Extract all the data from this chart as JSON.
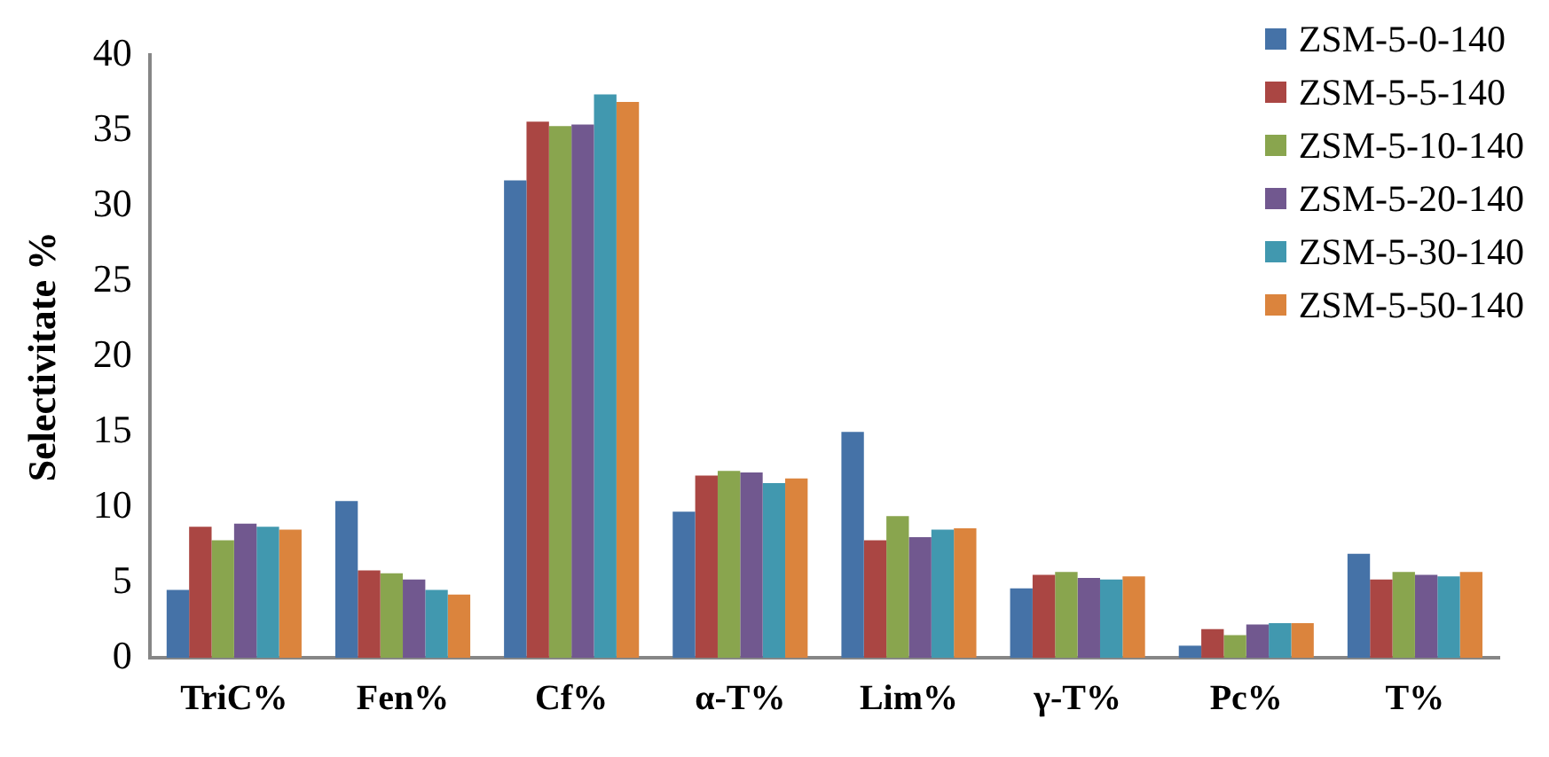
{
  "chart_data": {
    "type": "bar",
    "ylabel": "Selectivitate %",
    "categories": [
      "TriC%",
      "Fen%",
      "Cf%",
      "α-T%",
      "Lim%",
      "γ-T%",
      "Pc%",
      "T%"
    ],
    "series": [
      {
        "name": "ZSM-5-0-140",
        "color": "#4572a7",
        "values": [
          4.5,
          10.4,
          31.7,
          9.7,
          15.0,
          4.6,
          0.8,
          6.9
        ]
      },
      {
        "name": "ZSM-5-5-140",
        "color": "#aa4643",
        "values": [
          8.7,
          5.8,
          35.6,
          12.1,
          7.8,
          5.5,
          1.9,
          5.2
        ]
      },
      {
        "name": "ZSM-5-10-140",
        "color": "#89a54e",
        "values": [
          7.8,
          5.6,
          35.3,
          12.4,
          9.4,
          5.7,
          1.5,
          5.7
        ]
      },
      {
        "name": "ZSM-5-20-140",
        "color": "#71588f",
        "values": [
          8.9,
          5.2,
          35.4,
          12.3,
          8.0,
          5.3,
          2.2,
          5.5
        ]
      },
      {
        "name": "ZSM-5-30-140",
        "color": "#4198af",
        "values": [
          8.7,
          4.5,
          37.4,
          11.6,
          8.5,
          5.2,
          2.3,
          5.4
        ]
      },
      {
        "name": "ZSM-5-50-140",
        "color": "#db843d",
        "values": [
          8.5,
          4.2,
          36.9,
          11.9,
          8.6,
          5.4,
          2.3,
          5.7
        ]
      }
    ],
    "ylim": [
      0,
      40
    ],
    "yticks": [
      0,
      5,
      10,
      15,
      20,
      25,
      30,
      35,
      40
    ],
    "grid": false,
    "legend": "top right"
  }
}
